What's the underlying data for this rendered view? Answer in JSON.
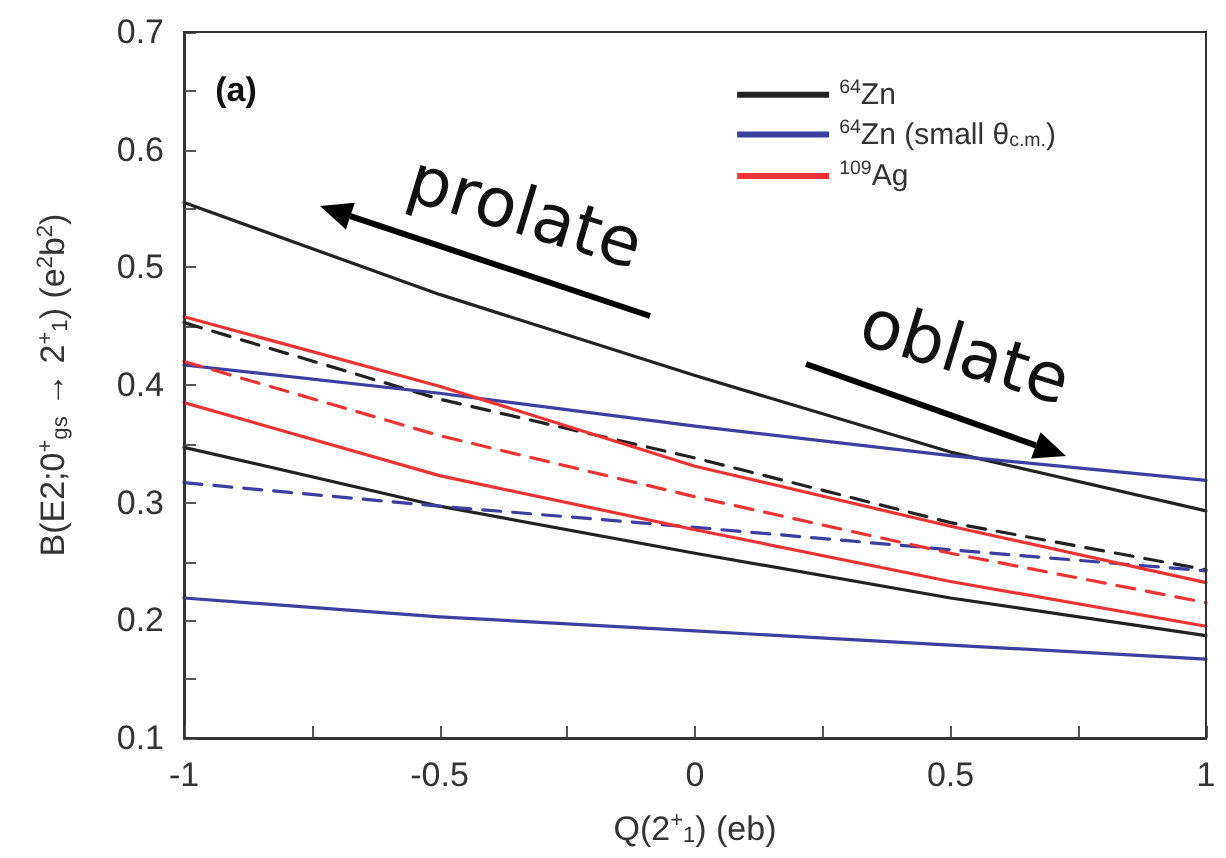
{
  "chart_data": {
    "type": "line",
    "xlabel": "Q(2$^{+}$$_{1}$) (eb)",
    "ylabel": "B(E2;0$^{+}$$_{gs}$ → 2$^{+}$$_{1}$) (e$^{2}$b$^{2}$)",
    "x": [
      -1,
      -0.5,
      0,
      0.5,
      1
    ],
    "series": [
      {
        "name": "$^{64}$Zn",
        "color": "#222222",
        "values": [
          0.555,
          0.477,
          0.408,
          0.343,
          0.293
        ]
      },
      {
        "color": "#222222",
        "line_style": "dashed",
        "values": [
          0.453,
          0.388,
          0.338,
          0.283,
          0.243
        ]
      },
      {
        "color": "#222222",
        "values": [
          0.347,
          0.297,
          0.257,
          0.219,
          0.187
        ]
      },
      {
        "name": "$^{64}$Zn (small θ$_{c.m.}$)",
        "color": "#3b3fa0",
        "values": [
          0.417,
          0.393,
          0.365,
          0.34,
          0.319
        ]
      },
      {
        "color": "#3b3fa0",
        "line_style": "dashed",
        "values": [
          0.317,
          0.297,
          0.279,
          0.26,
          0.242
        ]
      },
      {
        "color": "#3b3fa0",
        "values": [
          0.219,
          0.203,
          0.191,
          0.179,
          0.167
        ]
      },
      {
        "name": "$^{109}$Ag",
        "color": "#ee3333",
        "values": [
          0.458,
          0.399,
          0.331,
          0.28,
          0.232
        ]
      },
      {
        "color": "#ee3333",
        "line_style": "dashed",
        "values": [
          0.42,
          0.357,
          0.305,
          0.257,
          0.215
        ]
      },
      {
        "color": "#ee3333",
        "values": [
          0.385,
          0.323,
          0.277,
          0.233,
          0.195
        ]
      }
    ],
    "xlim": [
      -1,
      1
    ],
    "xticks": [
      -1,
      {
        "value": -0.75,
        "label": null
      },
      -0.5,
      {
        "value": -0.25,
        "label": null
      },
      0,
      {
        "value": 0.25,
        "label": null
      },
      0.5,
      {
        "value": 0.75,
        "label": null
      },
      1
    ],
    "ylim": [
      0.1,
      0.7
    ],
    "yticks": [
      0.1,
      {
        "value": 0.15,
        "label": null
      },
      0.2,
      {
        "value": 0.25,
        "label": null
      },
      0.3,
      {
        "value": 0.35,
        "label": null
      },
      0.4,
      {
        "value": 0.45,
        "label": null
      },
      0.5,
      {
        "value": 0.55,
        "label": null
      },
      0.6,
      {
        "value": 0.65,
        "label": null
      },
      0.7
    ],
    "grid": false,
    "legend": "top right",
    "marker": "none",
    "line_style": "solid",
    "annotations": [
      "(a)",
      "prolate",
      "oblate"
    ]
  }
}
